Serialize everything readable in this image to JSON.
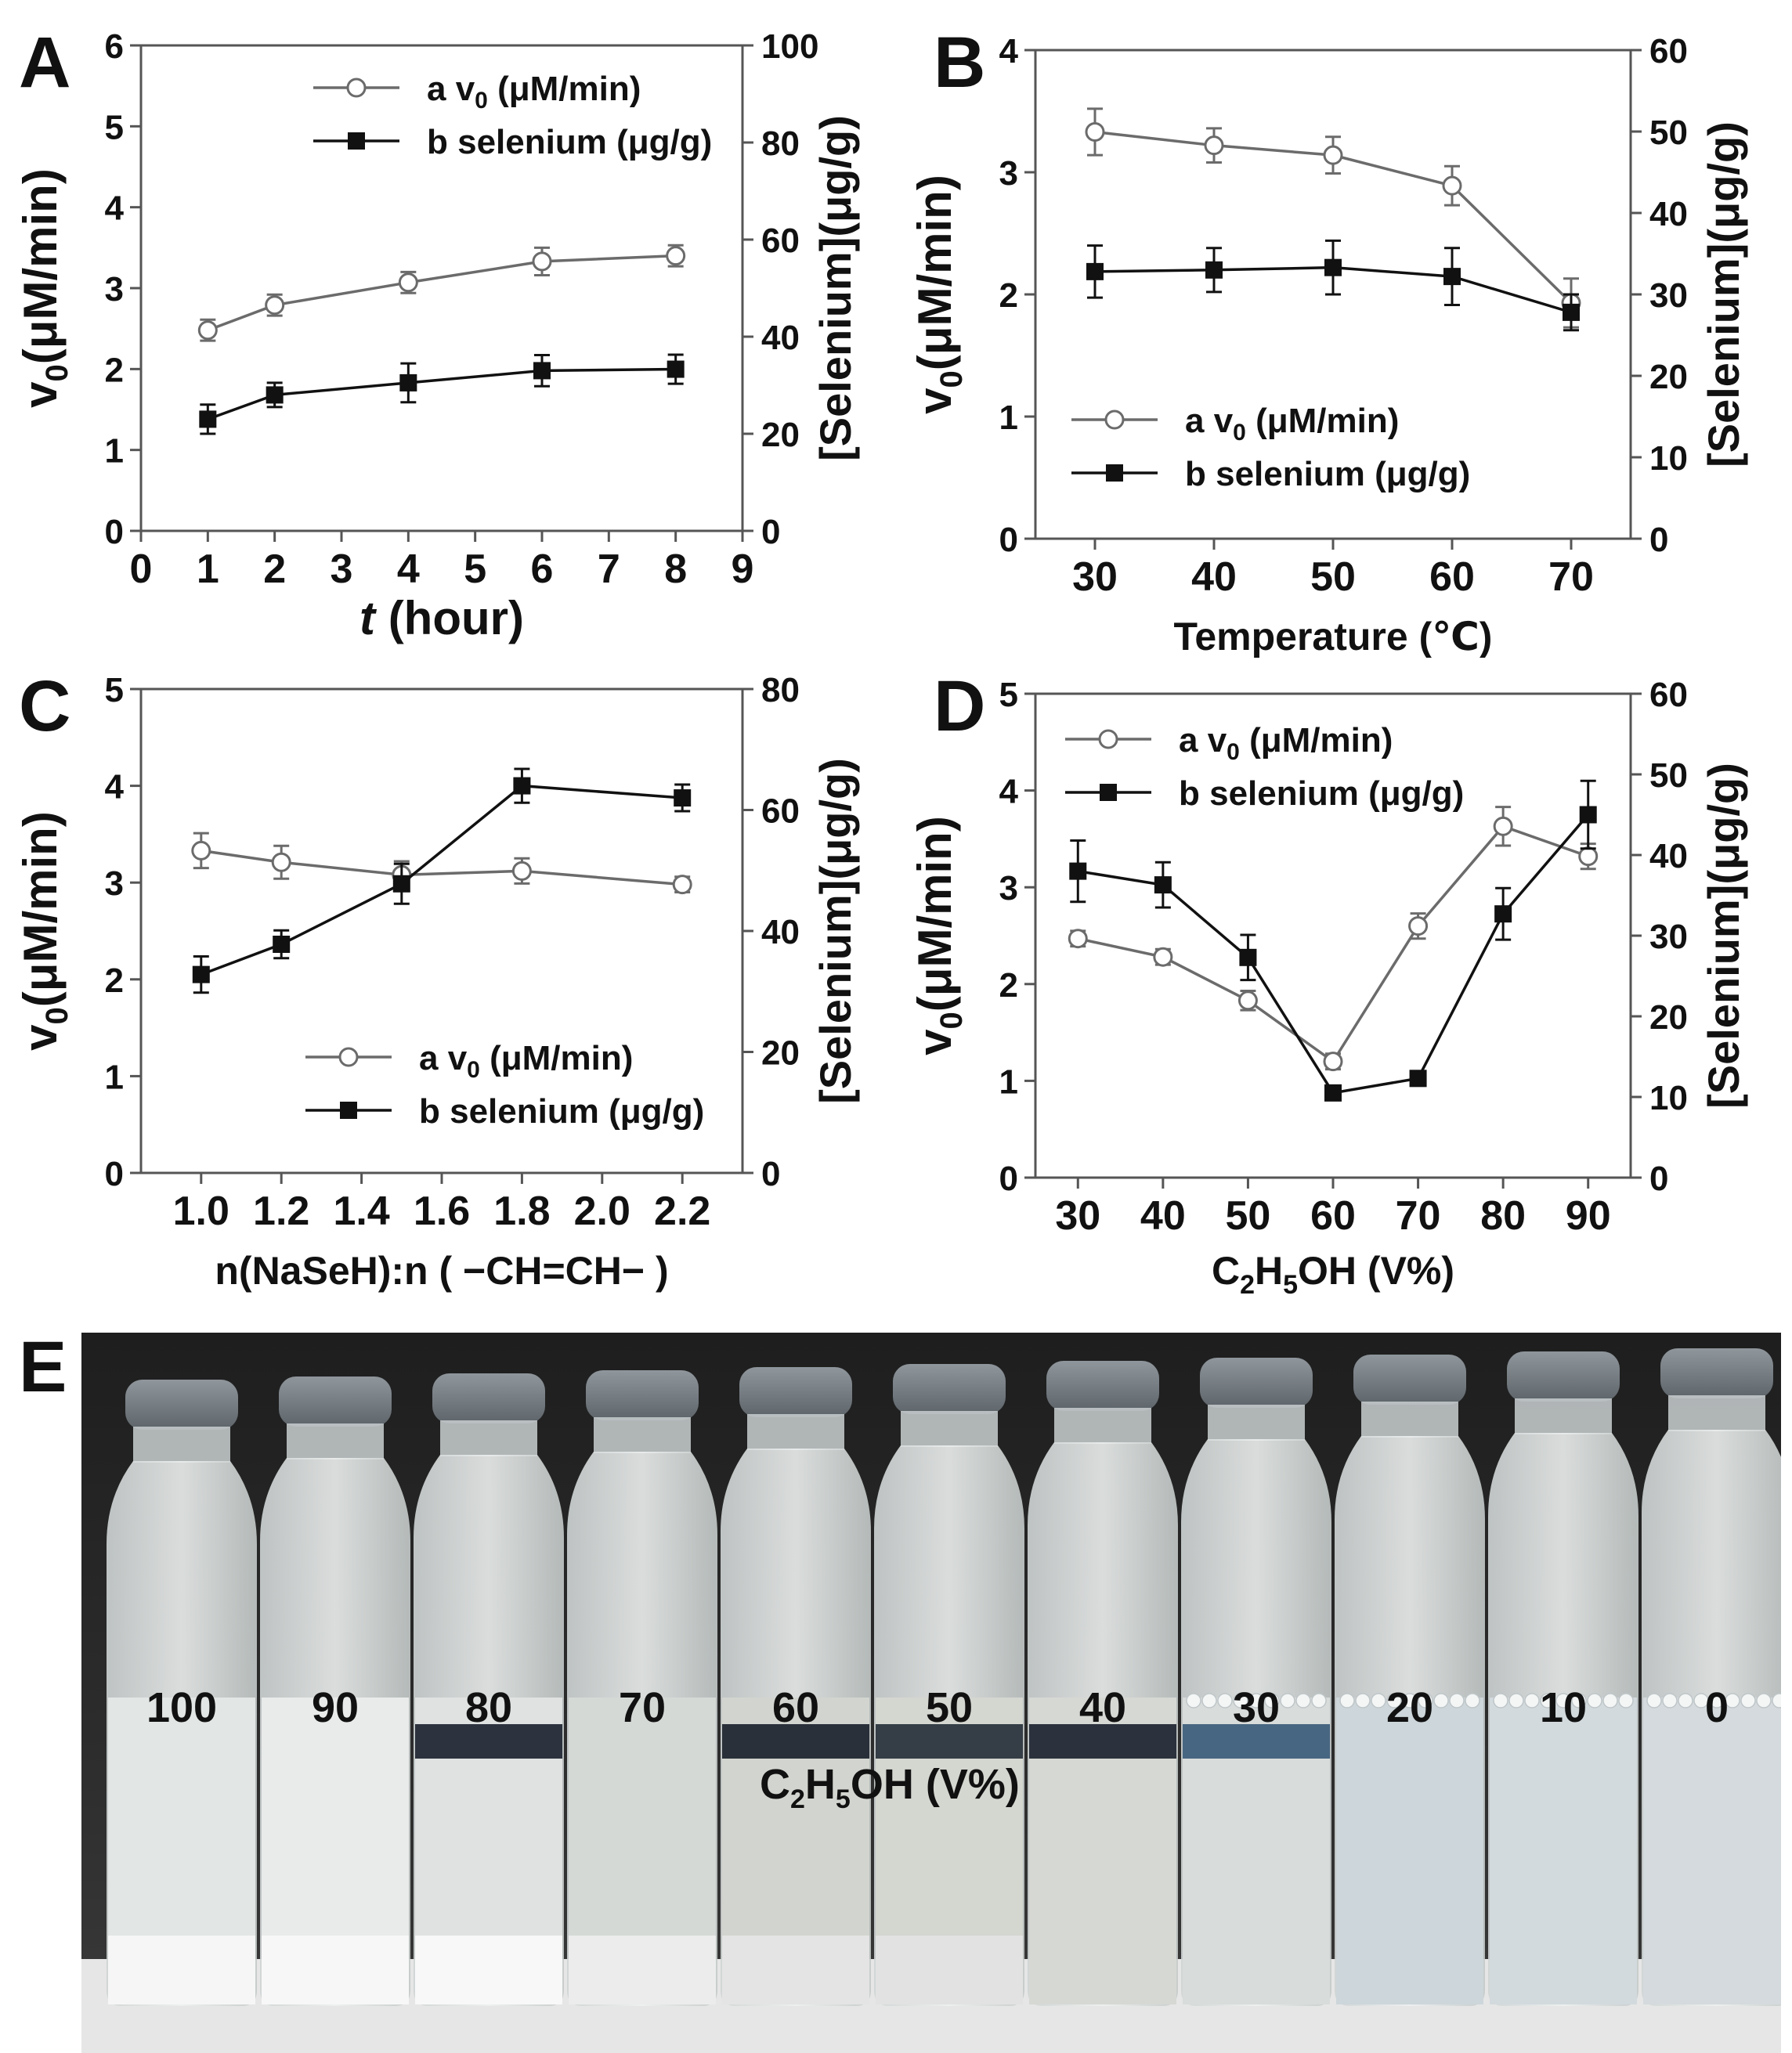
{
  "colors": {
    "series_a": "#6b6b6b",
    "series_b": "#111111",
    "axis": "#555555"
  },
  "panels": {
    "A": {
      "letter": "A"
    },
    "B": {
      "letter": "B"
    },
    "C": {
      "letter": "C"
    },
    "D": {
      "letter": "D"
    },
    "E": {
      "letter": "E"
    }
  },
  "chart_data": [
    {
      "id": "A",
      "type": "line",
      "xlabel_italic": "t",
      "xlabel": "(hour)",
      "ylabel_main": "v",
      "ylabel_sub": "0",
      "ylabel_rest": "(μM/min)",
      "y2label": "[Selenium](μg/g)",
      "xlim": [
        0,
        9
      ],
      "ylim": [
        0,
        6
      ],
      "y2lim": [
        0,
        100
      ],
      "xticks": [
        0,
        1,
        2,
        3,
        4,
        5,
        6,
        7,
        8,
        9
      ],
      "xtick_labels": [
        "0",
        "1",
        "2",
        "3",
        "4",
        "5",
        "6",
        "7",
        "8",
        "9"
      ],
      "yticks": [
        0,
        1,
        2,
        3,
        4,
        5,
        6
      ],
      "y2ticks": [
        0,
        20,
        40,
        60,
        80,
        100
      ],
      "legend_position": "top-right",
      "series": [
        {
          "name": "a",
          "legend_label": "a  v",
          "legend_sub": "0",
          "legend_rest": " (μM/min)",
          "marker": "open-circle",
          "axis": "left",
          "x": [
            1,
            2,
            4,
            6,
            8
          ],
          "y": [
            2.48,
            2.79,
            3.07,
            3.33,
            3.4
          ],
          "err": [
            0.13,
            0.13,
            0.13,
            0.17,
            0.13
          ]
        },
        {
          "name": "b",
          "legend_label": "b  selenium (μg/g)",
          "marker": "filled-square",
          "axis": "right",
          "x": [
            1,
            2,
            4,
            6,
            8
          ],
          "y": [
            23.0,
            28.0,
            30.5,
            33.0,
            33.3
          ],
          "err": [
            3.0,
            2.5,
            4.0,
            3.2,
            3.0
          ]
        }
      ]
    },
    {
      "id": "B",
      "type": "line",
      "xlabel": "Temperature (℃)",
      "ylabel_main": "v",
      "ylabel_sub": "0",
      "ylabel_rest": "(μM/min)",
      "y2label": "[Selenium](μg/g)",
      "xlim": [
        25,
        75
      ],
      "ylim": [
        0,
        4
      ],
      "y2lim": [
        0,
        60
      ],
      "xticks": [
        30,
        40,
        50,
        60,
        70
      ],
      "xtick_labels": [
        "30",
        "40",
        "50",
        "60",
        "70"
      ],
      "yticks": [
        0,
        1,
        2,
        3,
        4
      ],
      "y2ticks": [
        0,
        10,
        20,
        30,
        40,
        50,
        60
      ],
      "legend_position": "lower-left",
      "series": [
        {
          "name": "a",
          "legend_label": "a  v",
          "legend_sub": "0",
          "legend_rest": " (μM/min)",
          "marker": "open-circle",
          "axis": "left",
          "x": [
            30,
            40,
            50,
            60,
            70
          ],
          "y": [
            3.33,
            3.22,
            3.14,
            2.89,
            1.93
          ],
          "err": [
            0.19,
            0.14,
            0.15,
            0.16,
            0.2
          ]
        },
        {
          "name": "b",
          "legend_label": "b  selenium (μg/g)",
          "marker": "filled-square",
          "axis": "right",
          "x": [
            30,
            40,
            50,
            60,
            70
          ],
          "y": [
            32.8,
            33.0,
            33.3,
            32.2,
            27.8
          ],
          "err": [
            3.2,
            2.7,
            3.3,
            3.5,
            2.2
          ]
        }
      ]
    },
    {
      "id": "C",
      "type": "line",
      "xlabel": "n(NaSeH):n ( −CH=CH− )",
      "ylabel_main": "v",
      "ylabel_sub": "0",
      "ylabel_rest": "(μM/min)",
      "y2label": "[Selenium](μg/g)",
      "xlim": [
        0.85,
        2.35
      ],
      "ylim": [
        0,
        5
      ],
      "y2lim": [
        0,
        80
      ],
      "xticks": [
        1.0,
        1.2,
        1.4,
        1.6,
        1.8,
        2.0,
        2.2
      ],
      "xtick_labels": [
        "1.0",
        "1.2",
        "1.4",
        "1.6",
        "1.8",
        "2.0",
        "2.2"
      ],
      "yticks": [
        0,
        1,
        2,
        3,
        4,
        5
      ],
      "y2ticks": [
        0,
        20,
        40,
        60,
        80
      ],
      "legend_position": "bottom-right",
      "series": [
        {
          "name": "a",
          "legend_label": "a  v",
          "legend_sub": "0",
          "legend_rest": " (μM/min)",
          "marker": "open-circle",
          "axis": "left",
          "x": [
            1.0,
            1.2,
            1.5,
            1.8,
            2.2
          ],
          "y": [
            3.33,
            3.21,
            3.08,
            3.12,
            2.98
          ],
          "err": [
            0.18,
            0.17,
            0.14,
            0.13,
            0.08
          ]
        },
        {
          "name": "b",
          "legend_label": "b  selenium (μg/g)",
          "marker": "filled-square",
          "axis": "right",
          "x": [
            1.0,
            1.2,
            1.5,
            1.8,
            2.2
          ],
          "y": [
            32.8,
            37.8,
            47.8,
            64.0,
            62.0
          ],
          "err": [
            3.0,
            2.3,
            3.3,
            2.8,
            2.2
          ]
        }
      ]
    },
    {
      "id": "D",
      "type": "line",
      "xlabel_pre": "C",
      "xlabel_sub1": "2",
      "xlabel_mid": "H",
      "xlabel_sub2": "5",
      "xlabel_post": "OH (V%)",
      "ylabel_main": "v",
      "ylabel_sub": "0",
      "ylabel_rest": "(μM/min)",
      "y2label": "[Selenium](μg/g)",
      "xlim": [
        25,
        95
      ],
      "ylim": [
        0,
        5
      ],
      "y2lim": [
        0,
        60
      ],
      "xticks": [
        30,
        40,
        50,
        60,
        70,
        80,
        90
      ],
      "xtick_labels": [
        "30",
        "40",
        "50",
        "60",
        "70",
        "80",
        "90"
      ],
      "yticks": [
        0,
        1,
        2,
        3,
        4,
        5
      ],
      "y2ticks": [
        0,
        10,
        20,
        30,
        40,
        50,
        60
      ],
      "legend_position": "top-left",
      "series": [
        {
          "name": "a",
          "legend_label": "a  v",
          "legend_sub": "0",
          "legend_rest": " (μM/min)",
          "marker": "open-circle",
          "axis": "left",
          "x": [
            30,
            40,
            50,
            60,
            70,
            80,
            90
          ],
          "y": [
            2.47,
            2.28,
            1.83,
            1.2,
            2.6,
            3.63,
            3.32
          ],
          "err": [
            0.08,
            0.08,
            0.1,
            0.08,
            0.13,
            0.2,
            0.13
          ]
        },
        {
          "name": "b",
          "legend_label": "b  selenium (μg/g)",
          "marker": "filled-square",
          "axis": "right",
          "x": [
            30,
            40,
            50,
            60,
            70,
            80,
            90
          ],
          "y": [
            38.0,
            36.3,
            27.3,
            10.5,
            12.3,
            32.7,
            45.0
          ],
          "err": [
            3.8,
            2.8,
            2.8,
            0.8,
            0.5,
            3.2,
            4.2
          ]
        }
      ]
    }
  ],
  "photo": {
    "vial_labels": [
      "100",
      "90",
      "80",
      "70",
      "60",
      "50",
      "40",
      "30",
      "20",
      "10",
      "0"
    ],
    "xlabel_pre": "C",
    "xlabel_sub1": "2",
    "xlabel_mid": "H",
    "xlabel_sub2": "5",
    "xlabel_post": "OH (V%)"
  }
}
